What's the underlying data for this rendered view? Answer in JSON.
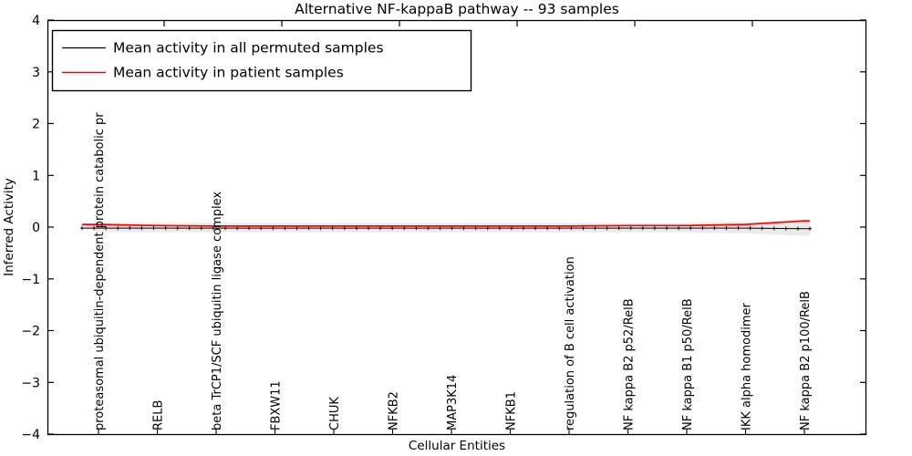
{
  "figure": {
    "title": "Alternative NF-kappaB pathway -- 93 samples",
    "xlabel": "Cellular Entities",
    "ylabel": "Inferred Activity"
  },
  "legend": {
    "position": "upper left",
    "entries": [
      {
        "label": "Mean activity in all permuted samples",
        "color": "#000000"
      },
      {
        "label": "Mean activity in patient samples",
        "color": "#ff0000"
      }
    ]
  },
  "chart_data": {
    "type": "line",
    "title": "Alternative NF-kappaB pathway -- 93 samples",
    "xlabel": "Cellular Entities",
    "ylabel": "Inferred Activity",
    "ylim": [
      -4,
      4
    ],
    "yticks": [
      4,
      3,
      2,
      1,
      0,
      -1,
      -2,
      -3,
      -4
    ],
    "ytick_labels": [
      "4",
      "3",
      "2",
      "1",
      "0",
      "−1",
      "−2",
      "−3",
      "−4"
    ],
    "grid": false,
    "legend_position": "upper left",
    "sample_count_in_title": 93,
    "categories": [
      "proteasomal ubiquitin-dependent protein catabolic pr",
      "RELB",
      "beta TrCP1/SCF ubiquitin ligase complex",
      "FBXW11",
      "CHUK",
      "NFKB2",
      "MAP3K14",
      "NFKB1",
      "regulation of B cell activation",
      "NF kappa B2 p52/RelB",
      "NF kappa B1 p50/RelB",
      "IKK alpha homodimer",
      "NF kappa B2 p100/RelB"
    ],
    "series": [
      {
        "name": "Mean activity in all permuted samples",
        "color": "#000000",
        "marker": "plus",
        "values": [
          -0.02,
          -0.02,
          -0.02,
          -0.02,
          -0.02,
          -0.02,
          -0.02,
          -0.02,
          -0.02,
          -0.02,
          -0.02,
          -0.02,
          -0.03
        ]
      },
      {
        "name": "Mean activity in patient samples",
        "color": "#ff0000",
        "marker": "none",
        "values": [
          0.05,
          0.03,
          0.02,
          0.02,
          0.02,
          0.02,
          0.02,
          0.02,
          0.02,
          0.03,
          0.03,
          0.05,
          0.12
        ]
      }
    ],
    "band": {
      "name": "permuted-samples activity spread",
      "color": "#d9d9d9",
      "upper": [
        0.08,
        0.08,
        0.08,
        0.08,
        0.08,
        0.08,
        0.08,
        0.08,
        0.08,
        0.08,
        0.08,
        0.1,
        0.15
      ],
      "lower": [
        -0.1,
        -0.1,
        -0.1,
        -0.1,
        -0.1,
        -0.1,
        -0.1,
        -0.1,
        -0.1,
        -0.1,
        -0.1,
        -0.12,
        -0.17
      ]
    },
    "n_marker_points": 62
  }
}
